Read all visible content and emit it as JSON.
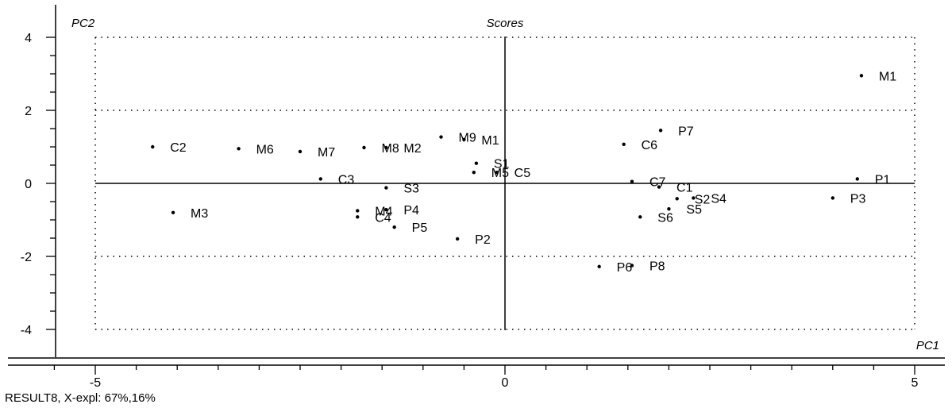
{
  "chart_data": {
    "type": "scatter",
    "title": "Scores",
    "xlabel": "PC1",
    "ylabel": "PC2",
    "xlim": [
      -5.5,
      5.5
    ],
    "ylim": [
      -4.5,
      4.5
    ],
    "xticks": [
      -5,
      0,
      5
    ],
    "yticks": [
      -4,
      -2,
      0,
      2,
      4
    ],
    "grid": true,
    "points": [
      {
        "label": "M1",
        "x": 4.35,
        "y": 2.95
      },
      {
        "label": "P1",
        "x": 4.3,
        "y": 0.12
      },
      {
        "label": "P3",
        "x": 4.0,
        "y": -0.4
      },
      {
        "label": "P7",
        "x": 1.9,
        "y": 1.45
      },
      {
        "label": "C6",
        "x": 1.45,
        "y": 1.07
      },
      {
        "label": "C7",
        "x": 1.55,
        "y": 0.05
      },
      {
        "label": "C1",
        "x": 1.88,
        "y": -0.1
      },
      {
        "label": "S2",
        "x": 2.1,
        "y": -0.42
      },
      {
        "label": "S4",
        "x": 2.3,
        "y": -0.4
      },
      {
        "label": "S5",
        "x": 2.0,
        "y": -0.7
      },
      {
        "label": "S6",
        "x": 1.65,
        "y": -0.92
      },
      {
        "label": "P6",
        "x": 1.15,
        "y": -2.28
      },
      {
        "label": "P8",
        "x": 1.55,
        "y": -2.25
      },
      {
        "label": "C2",
        "x": -4.3,
        "y": 1.0
      },
      {
        "label": "M6",
        "x": -3.25,
        "y": 0.95
      },
      {
        "label": "M7",
        "x": -2.5,
        "y": 0.87
      },
      {
        "label": "M8",
        "x": -1.72,
        "y": 0.98
      },
      {
        "label": "M2",
        "x": -1.45,
        "y": 0.98
      },
      {
        "label": "M9",
        "x": -0.78,
        "y": 1.27
      },
      {
        "label": "M1",
        "x": -0.5,
        "y": 1.2
      },
      {
        "label": "S1",
        "x": -0.35,
        "y": 0.55
      },
      {
        "label": "M5",
        "x": -0.38,
        "y": 0.3
      },
      {
        "label": "C5",
        "x": -0.1,
        "y": 0.3
      },
      {
        "label": "C3",
        "x": -2.25,
        "y": 0.12
      },
      {
        "label": "S3",
        "x": -1.45,
        "y": -0.12
      },
      {
        "label": "M3",
        "x": -4.05,
        "y": -0.8
      },
      {
        "label": "M4",
        "x": -1.8,
        "y": -0.75
      },
      {
        "label": "P4",
        "x": -1.45,
        "y": -0.72
      },
      {
        "label": "C4",
        "x": -1.8,
        "y": -0.92
      },
      {
        "label": "P5",
        "x": -1.35,
        "y": -1.2
      },
      {
        "label": "P2",
        "x": -0.58,
        "y": -1.52
      }
    ]
  },
  "footer": "RESULT8, X-expl: 67%,16%"
}
